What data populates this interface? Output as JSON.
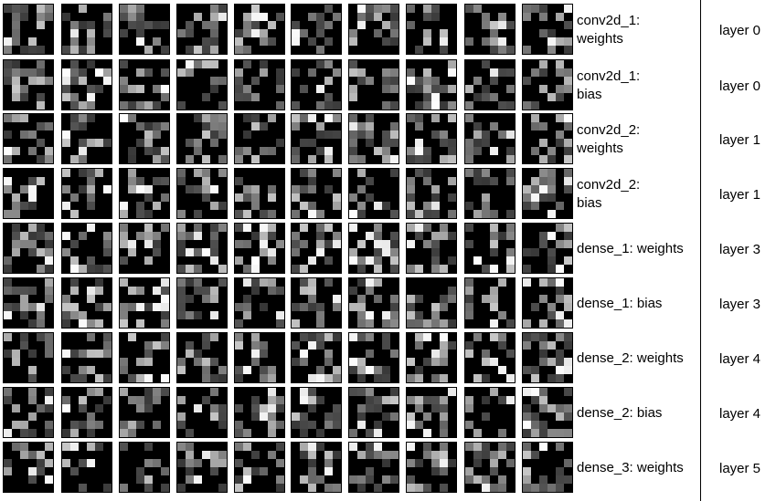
{
  "rows": [
    {
      "label": "conv2d_1:\nweights",
      "layer": "layer 0"
    },
    {
      "label": "conv2d_1:\nbias",
      "layer": "layer 0"
    },
    {
      "label": "conv2d_2:\nweights",
      "layer": "layer 1"
    },
    {
      "label": "conv2d_2:\nbias",
      "layer": "layer 1"
    },
    {
      "label": "dense_1: weights",
      "layer": "layer 3"
    },
    {
      "label": "dense_1: bias",
      "layer": "layer 3"
    },
    {
      "label": "dense_2: weights",
      "layer": "layer 4"
    },
    {
      "label": "dense_2: bias",
      "layer": "layer 4"
    },
    {
      "label": "dense_3: weights",
      "layer": "layer 5"
    }
  ],
  "tiles_per_row": 10,
  "tile_grid_size": 6,
  "tile_colors": {
    "background": "#000000",
    "border": "#000000"
  }
}
